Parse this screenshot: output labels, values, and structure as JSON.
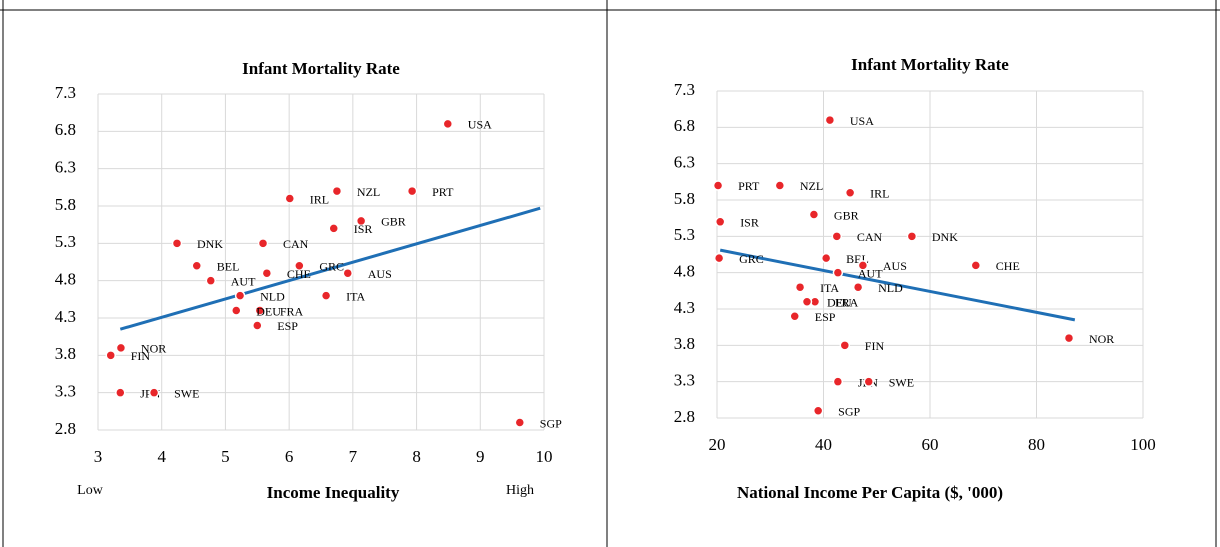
{
  "chart_data": [
    {
      "type": "scatter",
      "title": "Infant Mortality Rate",
      "x_label": "Income Inequality",
      "annotations": [
        "Low",
        "High"
      ],
      "labels": [
        "USA",
        "PRT",
        "NZL",
        "IRL",
        "GBR",
        "ISR",
        "DNK",
        "CAN",
        "GRC",
        "BEL",
        "CHE",
        "AUS",
        "AUT",
        "NLD",
        "ITA",
        "FRA",
        "DEU",
        "ESP",
        "NOR",
        "FIN",
        "JPN",
        "SWE",
        "SGP"
      ],
      "x": [
        8.49,
        7.93,
        6.75,
        6.01,
        7.13,
        6.7,
        4.24,
        5.59,
        6.16,
        4.55,
        5.65,
        6.92,
        4.77,
        5.23,
        6.58,
        5.54,
        5.17,
        5.5,
        3.36,
        3.2,
        3.35,
        3.88,
        9.62
      ],
      "values": [
        6.9,
        6.0,
        6.0,
        5.9,
        5.6,
        5.5,
        5.3,
        5.3,
        5.0,
        5.0,
        4.9,
        4.9,
        4.8,
        4.6,
        4.6,
        4.4,
        4.4,
        4.2,
        3.9,
        3.8,
        3.3,
        3.3,
        2.9
      ],
      "color": "#e8262a",
      "trendline": {
        "x": [
          3.35,
          9.94
        ],
        "values": [
          4.15,
          5.77
        ],
        "color": "#1f6fb5"
      },
      "xlim": [
        3,
        10
      ],
      "xticks": [
        3,
        4,
        5,
        6,
        7,
        8,
        9,
        10
      ],
      "ylim": [
        2.8,
        7.3
      ],
      "yticks": [
        2.8,
        3.3,
        3.8,
        4.3,
        4.8,
        5.3,
        5.8,
        6.3,
        6.8,
        7.3
      ],
      "grid": true
    },
    {
      "type": "scatter",
      "title": "Infant Mortality Rate",
      "x_label": "National Income Per Capita ($, '000)",
      "labels": [
        "USA",
        "PRT",
        "NZL",
        "IRL",
        "GBR",
        "ISR",
        "CAN",
        "DNK",
        "GRC",
        "BEL",
        "AUS",
        "CHE",
        "AUT",
        "ITA",
        "NLD",
        "FRA",
        "DEU",
        "ESP",
        "NOR",
        "FIN",
        "JPN",
        "SWE",
        "SGP"
      ],
      "x": [
        41.2,
        20.2,
        31.8,
        45,
        38.2,
        20.6,
        42.5,
        56.6,
        20.4,
        40.5,
        47.4,
        68.6,
        42.7,
        35.6,
        46.5,
        38.4,
        36.9,
        34.6,
        86.1,
        44,
        42.7,
        48.5,
        39
      ],
      "values": [
        6.9,
        6.0,
        6.0,
        5.9,
        5.6,
        5.5,
        5.3,
        5.3,
        5.0,
        5.0,
        4.9,
        4.9,
        4.8,
        4.6,
        4.6,
        4.4,
        4.4,
        4.2,
        3.9,
        3.8,
        3.3,
        3.3,
        2.9
      ],
      "color": "#e8262a",
      "trendline": {
        "x": [
          20.6,
          87.2
        ],
        "values": [
          5.11,
          4.15
        ],
        "color": "#1f6fb5"
      },
      "xlim": [
        20,
        100
      ],
      "xticks": [
        20,
        40,
        60,
        80,
        100
      ],
      "ylim": [
        2.8,
        7.3
      ],
      "yticks": [
        2.8,
        3.3,
        3.8,
        4.3,
        4.8,
        5.3,
        5.8,
        6.3,
        6.8,
        7.3
      ],
      "grid": true
    }
  ]
}
